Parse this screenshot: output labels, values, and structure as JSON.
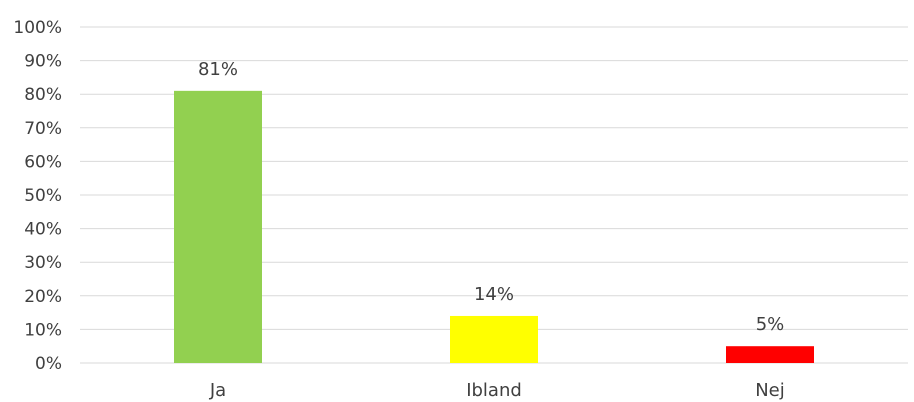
{
  "chart_data": {
    "type": "bar",
    "categories": [
      "Ja",
      "Ibland",
      "Nej"
    ],
    "values": [
      81,
      14,
      5
    ],
    "data_labels": [
      "81%",
      "14%",
      "5%"
    ],
    "colors": [
      "#92d050",
      "#ffff00",
      "#ff0000"
    ],
    "ylim": [
      0,
      100
    ],
    "y_ticks": [
      0,
      10,
      20,
      30,
      40,
      50,
      60,
      70,
      80,
      90,
      100
    ],
    "y_tick_labels": [
      "0%",
      "10%",
      "20%",
      "30%",
      "40%",
      "50%",
      "60%",
      "70%",
      "80%",
      "90%",
      "100%"
    ],
    "grid": true,
    "legend": "none",
    "title": "",
    "xlabel": "",
    "ylabel": ""
  }
}
